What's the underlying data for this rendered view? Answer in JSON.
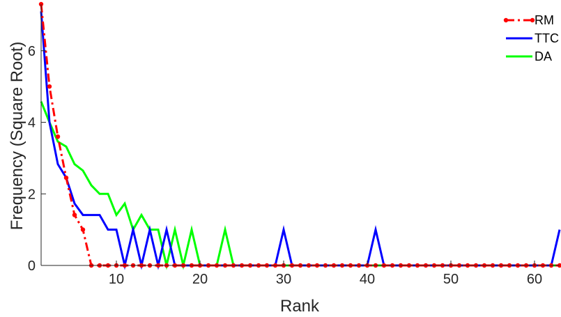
{
  "chart_data": {
    "type": "line",
    "xlabel": "Rank",
    "ylabel": "Frequency (Square Root)",
    "xlim": [
      1,
      63
    ],
    "ylim": [
      0,
      7.3
    ],
    "x_ticks": [
      10,
      20,
      30,
      40,
      50,
      60
    ],
    "y_ticks": [
      0,
      2,
      4,
      6
    ],
    "grid": false,
    "legend_position": "top-right",
    "series": [
      {
        "name": "RM",
        "color": "#ff0000",
        "style": "dash-dot",
        "marker": "circle",
        "x": [
          1,
          2,
          3,
          4,
          5,
          6,
          7,
          8,
          9,
          10,
          11,
          12,
          13,
          14,
          15,
          16,
          17,
          18,
          19,
          20,
          21,
          22,
          23,
          24,
          25,
          26,
          27,
          28,
          29,
          30,
          31,
          32,
          33,
          34,
          35,
          36,
          37,
          38,
          39,
          40,
          41,
          42,
          43,
          44,
          45,
          46,
          47,
          48,
          49,
          50,
          51,
          52,
          53,
          54,
          55,
          56,
          57,
          58,
          59,
          60,
          61,
          62,
          63
        ],
        "values": [
          7.3,
          5.0,
          3.6,
          2.45,
          1.41,
          1.0,
          0,
          0,
          0,
          0,
          0,
          0,
          0,
          0,
          0,
          0,
          0,
          0,
          0,
          0,
          0,
          0,
          0,
          0,
          0,
          0,
          0,
          0,
          0,
          0,
          0,
          0,
          0,
          0,
          0,
          0,
          0,
          0,
          0,
          0,
          0,
          0,
          0,
          0,
          0,
          0,
          0,
          0,
          0,
          0,
          0,
          0,
          0,
          0,
          0,
          0,
          0,
          0,
          0,
          0,
          0,
          0,
          0
        ]
      },
      {
        "name": "TTC",
        "color": "#0000ff",
        "style": "solid",
        "x": [
          1,
          2,
          3,
          4,
          5,
          6,
          7,
          8,
          9,
          10,
          11,
          12,
          13,
          14,
          15,
          16,
          17,
          18,
          19,
          20,
          21,
          22,
          23,
          24,
          25,
          26,
          27,
          28,
          29,
          30,
          31,
          32,
          33,
          34,
          35,
          36,
          37,
          38,
          39,
          40,
          41,
          42,
          43,
          44,
          45,
          46,
          47,
          48,
          49,
          50,
          51,
          52,
          53,
          54,
          55,
          56,
          57,
          58,
          59,
          60,
          61,
          62,
          63
        ],
        "values": [
          7.1,
          4.0,
          2.83,
          2.45,
          1.73,
          1.41,
          1.41,
          1.41,
          1.0,
          1.0,
          0,
          1.0,
          0,
          1.0,
          0,
          1.0,
          0,
          0,
          0,
          0,
          0,
          0,
          0,
          0,
          0,
          0,
          0,
          0,
          0,
          1.0,
          0,
          0,
          0,
          0,
          0,
          0,
          0,
          0,
          0,
          0,
          1.0,
          0,
          0,
          0,
          0,
          0,
          0,
          0,
          0,
          0,
          0,
          0,
          0,
          0,
          0,
          0,
          0,
          0,
          0,
          0,
          0,
          0,
          1.0
        ]
      },
      {
        "name": "DA",
        "color": "#00ff00",
        "style": "solid",
        "x": [
          1,
          2,
          3,
          4,
          5,
          6,
          7,
          8,
          9,
          10,
          11,
          12,
          13,
          14,
          15,
          16,
          17,
          18,
          19,
          20,
          21,
          22,
          23,
          24,
          25,
          26,
          27,
          28,
          29,
          30,
          31,
          32,
          33,
          34,
          35,
          36,
          37,
          38,
          39,
          40,
          41,
          42,
          43,
          44,
          45,
          46,
          47,
          48,
          49,
          50,
          51,
          52,
          53,
          54,
          55,
          56,
          57,
          58,
          59,
          60,
          61,
          62,
          63
        ],
        "values": [
          4.58,
          4.0,
          3.46,
          3.32,
          2.83,
          2.65,
          2.24,
          2.0,
          2.0,
          1.41,
          1.73,
          1.0,
          1.41,
          1.0,
          1.0,
          0,
          1.0,
          0,
          1.0,
          0,
          0,
          0,
          1.0,
          0,
          0,
          0,
          0,
          0,
          0,
          0,
          0,
          0,
          0,
          0,
          0,
          0,
          0,
          0,
          0,
          0,
          0,
          0,
          0,
          0,
          0,
          0,
          0,
          0,
          0,
          0,
          0,
          0,
          0,
          0,
          0,
          0,
          0,
          0,
          0,
          0,
          0,
          0,
          0
        ]
      }
    ]
  }
}
